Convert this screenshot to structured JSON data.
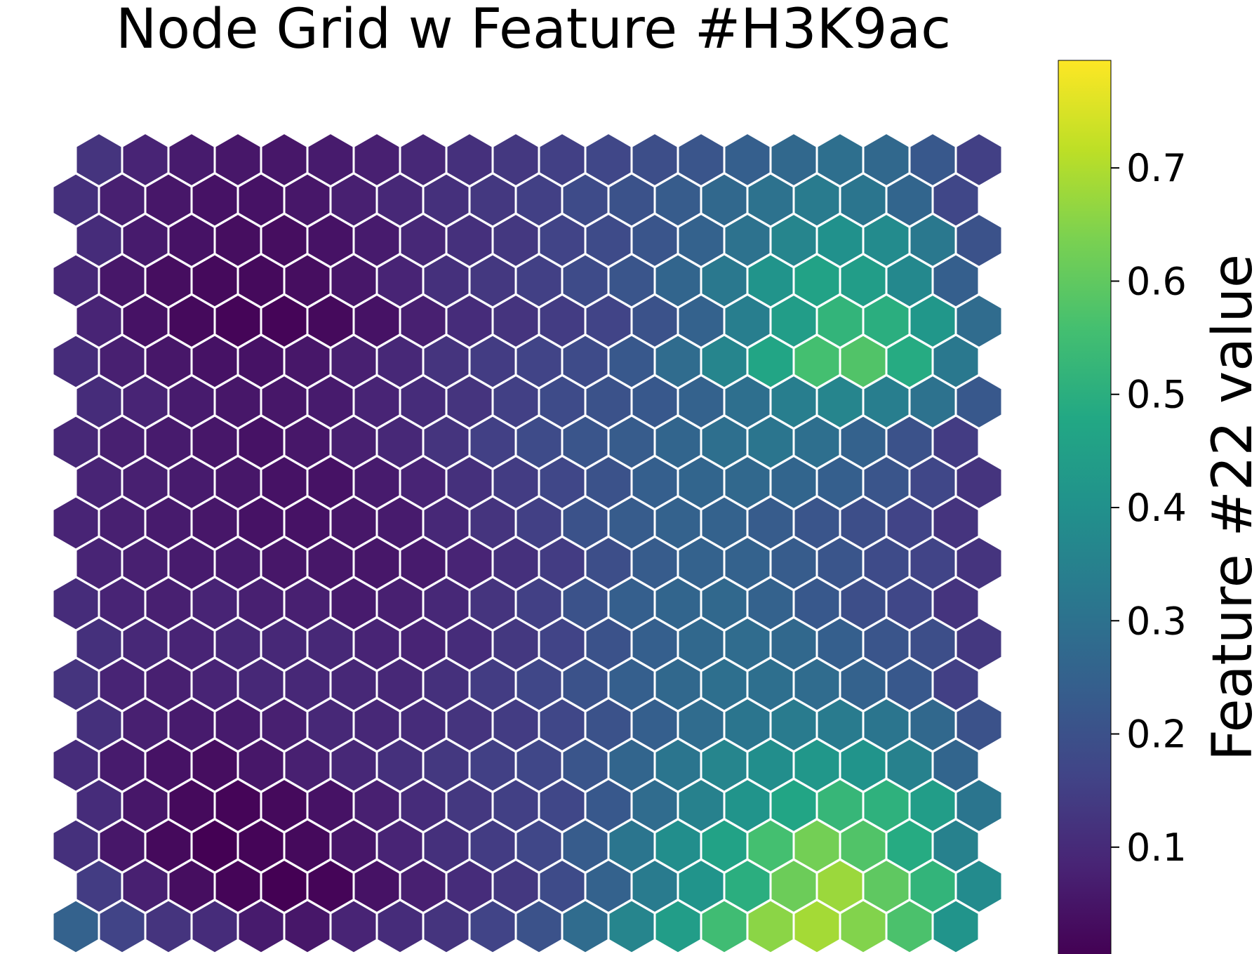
{
  "chart_data": {
    "type": "heatmap",
    "layout": "hexagonal",
    "title": "Node Grid w Feature #H3K9ac",
    "colormap": "viridis",
    "color_range": [
      0.0,
      0.8
    ],
    "rows": 20,
    "cols": 20,
    "values": [
      [
        0.25,
        0.16,
        0.12,
        0.1,
        0.06,
        0.05,
        0.08,
        0.1,
        0.12,
        0.16,
        0.2,
        0.28,
        0.36,
        0.44,
        0.55,
        0.66,
        0.69,
        0.65,
        0.57,
        0.41
      ],
      [
        0.14,
        0.07,
        0.03,
        0.01,
        0.0,
        0.01,
        0.04,
        0.07,
        0.1,
        0.13,
        0.18,
        0.25,
        0.33,
        0.41,
        0.5,
        0.62,
        0.68,
        0.6,
        0.52,
        0.38
      ],
      [
        0.11,
        0.05,
        0.02,
        0.0,
        0.01,
        0.02,
        0.05,
        0.08,
        0.11,
        0.14,
        0.17,
        0.23,
        0.31,
        0.39,
        0.46,
        0.56,
        0.63,
        0.58,
        0.49,
        0.35
      ],
      [
        0.1,
        0.05,
        0.02,
        0.01,
        0.02,
        0.04,
        0.07,
        0.1,
        0.13,
        0.15,
        0.17,
        0.22,
        0.28,
        0.35,
        0.41,
        0.47,
        0.53,
        0.51,
        0.44,
        0.31
      ],
      [
        0.1,
        0.06,
        0.04,
        0.03,
        0.05,
        0.07,
        0.09,
        0.11,
        0.13,
        0.15,
        0.17,
        0.21,
        0.26,
        0.31,
        0.36,
        0.39,
        0.42,
        0.41,
        0.35,
        0.26
      ],
      [
        0.11,
        0.07,
        0.06,
        0.06,
        0.07,
        0.09,
        0.09,
        0.1,
        0.12,
        0.14,
        0.17,
        0.2,
        0.24,
        0.28,
        0.31,
        0.33,
        0.33,
        0.31,
        0.27,
        0.2
      ],
      [
        0.12,
        0.08,
        0.07,
        0.08,
        0.09,
        0.09,
        0.09,
        0.09,
        0.11,
        0.14,
        0.17,
        0.2,
        0.24,
        0.27,
        0.29,
        0.29,
        0.28,
        0.25,
        0.22,
        0.15
      ],
      [
        0.11,
        0.09,
        0.08,
        0.09,
        0.09,
        0.09,
        0.08,
        0.08,
        0.1,
        0.13,
        0.16,
        0.2,
        0.24,
        0.27,
        0.28,
        0.27,
        0.24,
        0.21,
        0.19,
        0.13
      ],
      [
        0.1,
        0.08,
        0.07,
        0.08,
        0.07,
        0.07,
        0.06,
        0.07,
        0.09,
        0.12,
        0.15,
        0.2,
        0.24,
        0.26,
        0.27,
        0.25,
        0.22,
        0.19,
        0.17,
        0.12
      ],
      [
        0.08,
        0.07,
        0.06,
        0.06,
        0.05,
        0.05,
        0.05,
        0.06,
        0.08,
        0.11,
        0.14,
        0.19,
        0.23,
        0.25,
        0.25,
        0.23,
        0.21,
        0.18,
        0.16,
        0.12
      ],
      [
        0.08,
        0.07,
        0.06,
        0.05,
        0.04,
        0.04,
        0.05,
        0.06,
        0.09,
        0.12,
        0.15,
        0.2,
        0.23,
        0.25,
        0.25,
        0.23,
        0.21,
        0.19,
        0.16,
        0.12
      ],
      [
        0.08,
        0.07,
        0.06,
        0.05,
        0.04,
        0.04,
        0.06,
        0.08,
        0.11,
        0.14,
        0.17,
        0.2,
        0.24,
        0.26,
        0.27,
        0.26,
        0.24,
        0.21,
        0.17,
        0.12
      ],
      [
        0.09,
        0.07,
        0.06,
        0.05,
        0.04,
        0.05,
        0.07,
        0.09,
        0.12,
        0.15,
        0.18,
        0.21,
        0.23,
        0.26,
        0.29,
        0.31,
        0.29,
        0.25,
        0.2,
        0.14
      ],
      [
        0.1,
        0.08,
        0.06,
        0.05,
        0.05,
        0.06,
        0.08,
        0.1,
        0.12,
        0.15,
        0.18,
        0.2,
        0.22,
        0.25,
        0.29,
        0.34,
        0.36,
        0.34,
        0.3,
        0.22
      ],
      [
        0.1,
        0.07,
        0.05,
        0.04,
        0.04,
        0.05,
        0.07,
        0.09,
        0.12,
        0.14,
        0.16,
        0.18,
        0.22,
        0.28,
        0.36,
        0.47,
        0.56,
        0.58,
        0.49,
        0.32
      ],
      [
        0.08,
        0.04,
        0.02,
        0.01,
        0.01,
        0.02,
        0.04,
        0.07,
        0.1,
        0.12,
        0.14,
        0.16,
        0.2,
        0.25,
        0.34,
        0.44,
        0.52,
        0.5,
        0.42,
        0.28
      ],
      [
        0.09,
        0.05,
        0.03,
        0.02,
        0.02,
        0.03,
        0.05,
        0.08,
        0.11,
        0.13,
        0.15,
        0.18,
        0.21,
        0.26,
        0.32,
        0.41,
        0.46,
        0.44,
        0.37,
        0.24
      ],
      [
        0.1,
        0.06,
        0.04,
        0.03,
        0.03,
        0.04,
        0.06,
        0.09,
        0.11,
        0.13,
        0.16,
        0.18,
        0.21,
        0.25,
        0.3,
        0.36,
        0.4,
        0.38,
        0.32,
        0.2
      ],
      [
        0.11,
        0.07,
        0.05,
        0.04,
        0.04,
        0.05,
        0.07,
        0.09,
        0.11,
        0.13,
        0.15,
        0.18,
        0.2,
        0.23,
        0.27,
        0.3,
        0.33,
        0.31,
        0.26,
        0.17
      ],
      [
        0.12,
        0.08,
        0.06,
        0.05,
        0.05,
        0.06,
        0.07,
        0.09,
        0.11,
        0.13,
        0.15,
        0.17,
        0.19,
        0.21,
        0.24,
        0.27,
        0.29,
        0.27,
        0.22,
        0.15
      ]
    ],
    "colorbar": {
      "label": "Feature #22 value",
      "range": [
        0.005,
        0.795
      ],
      "ticks": [
        0.1,
        0.2,
        0.3,
        0.4,
        0.5,
        0.6,
        0.7
      ],
      "tick_labels": [
        "0.1",
        "0.2",
        "0.3",
        "0.4",
        "0.5",
        "0.6",
        "0.7"
      ]
    }
  }
}
